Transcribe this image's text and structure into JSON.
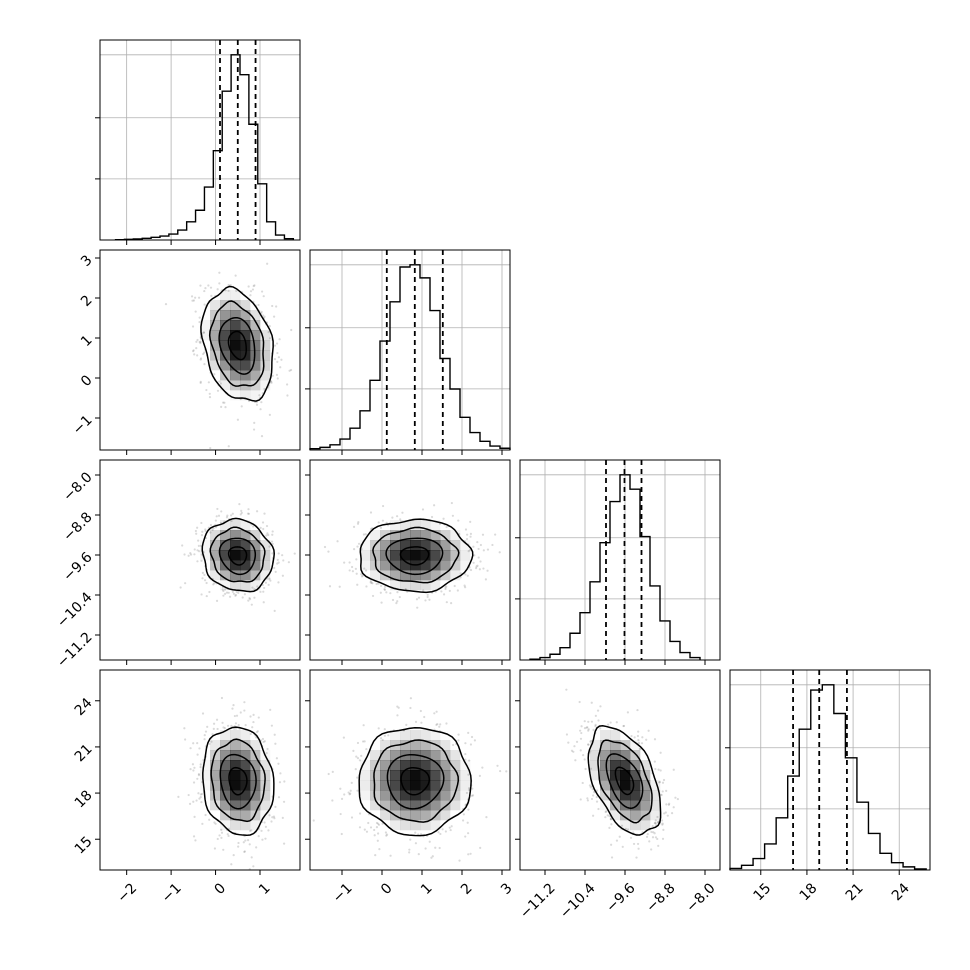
{
  "chart_data": {
    "type": "corner",
    "title": "",
    "parameters": [
      {
        "index": 0,
        "range": [
          -2.6,
          1.9
        ],
        "ticks": [
          -2,
          -1,
          0,
          1
        ],
        "tick_labels": [
          "−2",
          "−1",
          "0",
          "1"
        ],
        "mean": 0.5,
        "sd": 0.4,
        "quantiles": [
          0.1,
          0.5,
          0.9
        ]
      },
      {
        "index": 1,
        "range": [
          -1.8,
          3.2
        ],
        "ticks": [
          -1,
          0,
          1,
          2,
          3
        ],
        "tick_labels": [
          "−1",
          "0",
          "1",
          "2",
          "3"
        ],
        "mean": 0.82,
        "sd": 0.7,
        "quantiles": [
          0.12,
          0.82,
          1.52
        ]
      },
      {
        "index": 2,
        "range": [
          -11.7,
          -7.7
        ],
        "ticks": [
          -11.2,
          -10.4,
          -9.6,
          -8.8,
          -8.0
        ],
        "tick_labels": [
          "−11.2",
          "−10.4",
          "−9.6",
          "−8.8",
          "−8.0"
        ],
        "mean": -9.61,
        "sd": 0.36,
        "quantiles": [
          -9.98,
          -9.61,
          -9.27
        ]
      },
      {
        "index": 3,
        "range": [
          13,
          26
        ],
        "ticks": [
          15,
          18,
          21,
          24
        ],
        "tick_labels": [
          "15",
          "18",
          "21",
          "24"
        ],
        "mean": 18.8,
        "sd": 1.75,
        "quantiles": [
          17.1,
          18.8,
          20.6
        ]
      }
    ],
    "correlations": {
      "1_0": -0.25,
      "2_0": -0.1,
      "2_1": 0.0,
      "3_0": -0.1,
      "3_1": 0.0,
      "3_2": -0.45
    },
    "histograms": [
      {
        "param": 0,
        "bins": [
          -2.25,
          -2.05,
          -1.85,
          -1.65,
          -1.45,
          -1.25,
          -1.05,
          -0.85,
          -0.65,
          -0.45,
          -0.25,
          -0.05,
          0.15,
          0.35,
          0.55,
          0.75,
          0.95,
          1.15,
          1.35,
          1.55,
          1.75
        ],
        "counts": [
          1,
          2,
          3,
          5,
          8,
          12,
          18,
          30,
          55,
          90,
          160,
          270,
          450,
          560,
          500,
          350,
          170,
          55,
          15,
          4
        ]
      },
      {
        "param": 1,
        "bins": [
          -1.8,
          -1.55,
          -1.3,
          -1.05,
          -0.8,
          -0.55,
          -0.3,
          -0.05,
          0.2,
          0.45,
          0.7,
          0.95,
          1.2,
          1.45,
          1.7,
          1.95,
          2.2,
          2.45,
          2.7,
          2.95,
          3.2
        ],
        "counts": [
          3,
          6,
          12,
          25,
          50,
          90,
          160,
          250,
          340,
          420,
          425,
          395,
          320,
          210,
          140,
          75,
          40,
          20,
          9,
          4
        ]
      },
      {
        "param": 2,
        "bins": [
          -11.5,
          -11.3,
          -11.1,
          -10.9,
          -10.7,
          -10.5,
          -10.3,
          -10.1,
          -9.9,
          -9.7,
          -9.5,
          -9.3,
          -9.1,
          -8.9,
          -8.7,
          -8.5,
          -8.3,
          -8.1
        ],
        "counts": [
          2,
          6,
          14,
          30,
          65,
          115,
          190,
          285,
          385,
          450,
          415,
          300,
          180,
          95,
          45,
          18,
          6
        ]
      },
      {
        "param": 3,
        "bins": [
          13,
          13.75,
          14.5,
          15.25,
          16,
          16.75,
          17.5,
          18.25,
          19,
          19.75,
          20.5,
          21.25,
          22,
          22.75,
          23.5,
          24.25,
          25,
          25.75
        ],
        "counts": [
          3,
          9,
          22,
          50,
          100,
          180,
          270,
          345,
          355,
          300,
          215,
          130,
          70,
          32,
          14,
          6,
          2
        ]
      }
    ]
  }
}
